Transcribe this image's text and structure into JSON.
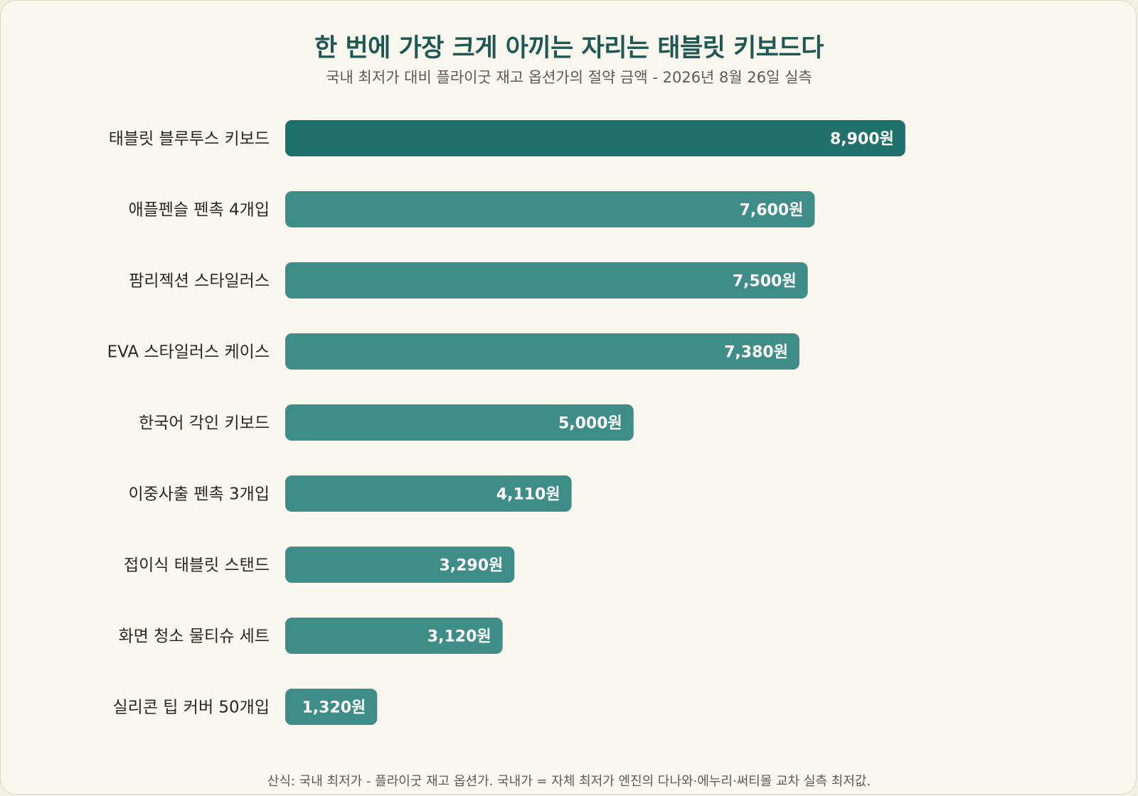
{
  "colors": {
    "highlight_bar": "#1f716b",
    "bar": "#3f8d88",
    "title": "#1d5853",
    "background": "#faf7ef"
  },
  "chart_data": {
    "type": "bar",
    "orientation": "horizontal",
    "title": "한 번에 가장 크게 아끼는 자리는 태블릿 키보드다",
    "subtitle": "국내 최저가 대비 플라이굿 재고 옵션가의 절약 금액 - 2026년 8월 26일 실측",
    "footnote": "산식: 국내 최저가 - 플라이굿 재고 옵션가. 국내가 = 자체 최저가 엔진의 다나와·에누리·써티몰 교차 실측 최저값.",
    "unit": "원",
    "grid": false,
    "xlim": [
      0,
      9800
    ],
    "categories": [
      "태블릿 블루투스 키보드",
      "애플펜슬 펜촉 4개입",
      "팜리젝션 스타일러스",
      "EVA 스타일러스 케이스",
      "한국어 각인 키보드",
      "이중사출 펜촉 3개입",
      "접이식 태블릿 스탠드",
      "화면 청소 물티슈 세트",
      "실리콘 팁 커버 50개입"
    ],
    "values": [
      8900,
      7600,
      7500,
      7380,
      5000,
      4110,
      3290,
      3120,
      1320
    ],
    "value_labels": [
      "8,900원",
      "7,600원",
      "7,500원",
      "7,380원",
      "5,000원",
      "4,110원",
      "3,290원",
      "3,120원",
      "1,320원"
    ],
    "highlight_index": 0
  }
}
